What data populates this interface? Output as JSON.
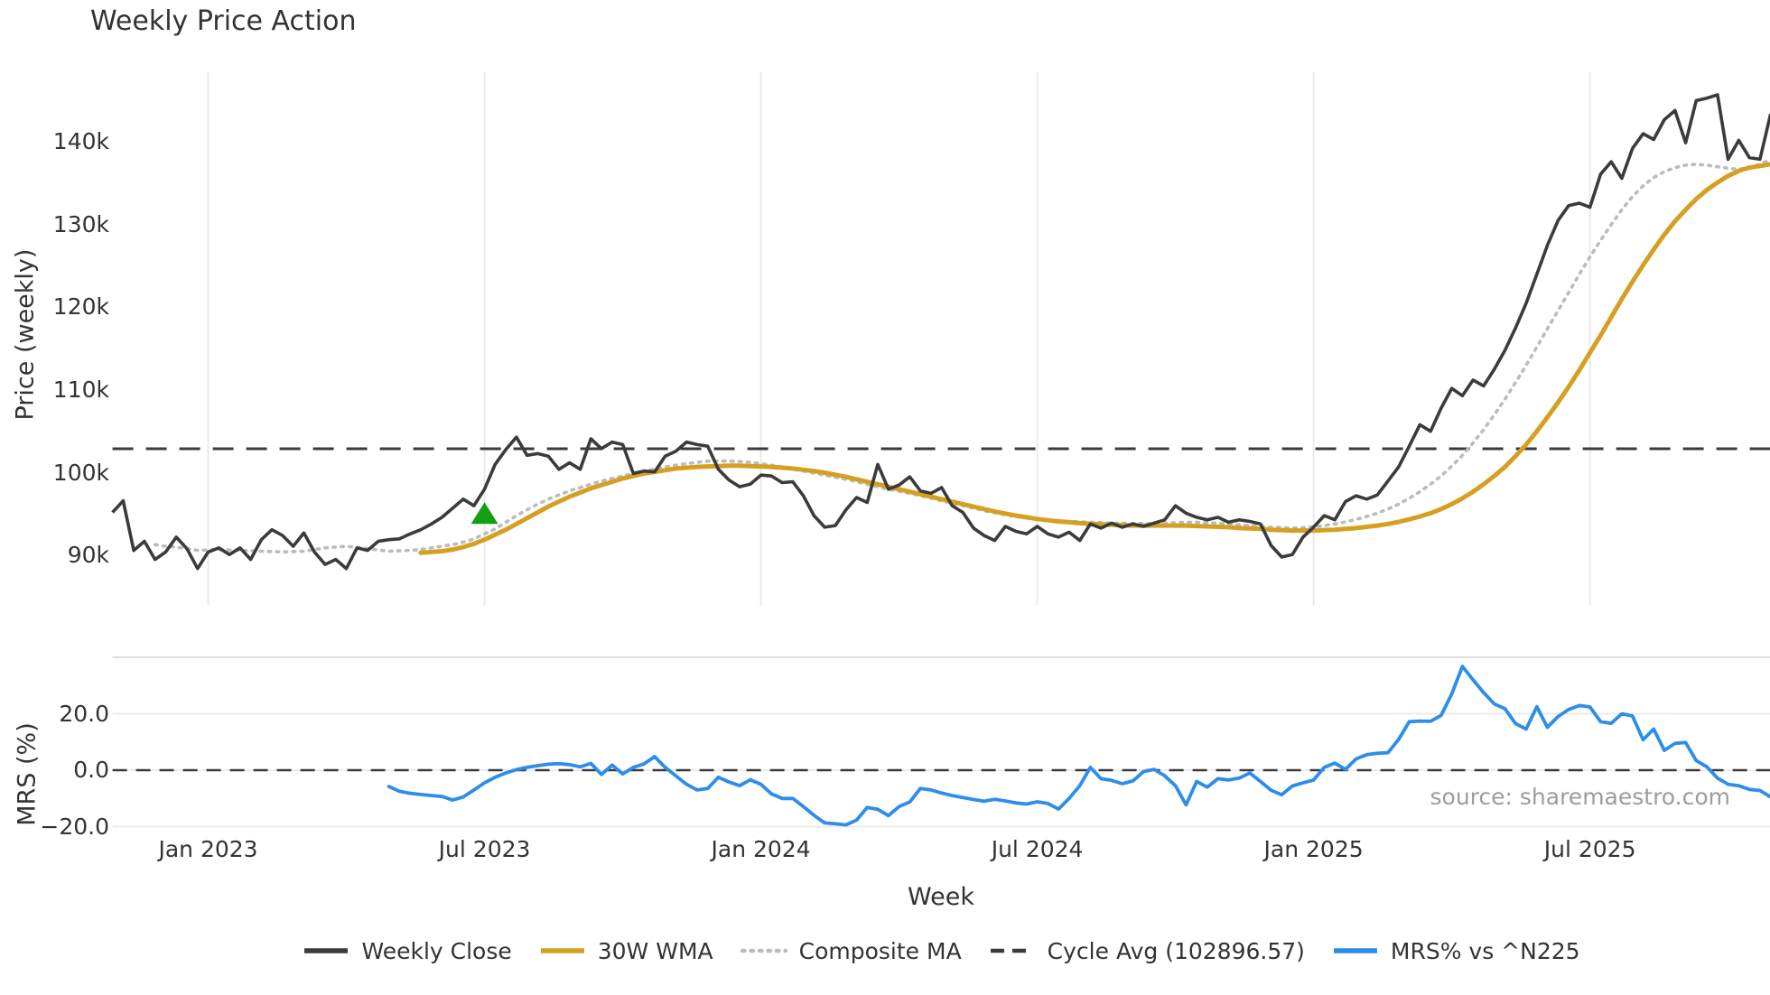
{
  "title": "Weekly Price Action",
  "source_note": "source: sharemaestro.com",
  "colors": {
    "weekly_close": "#3b3b3b",
    "wma": "#d5a021",
    "composite": "#bcbcbc",
    "cycle_avg": "#3a3a3a",
    "mrs": "#2d8de9",
    "signal_marker": "#13a113",
    "grid": "#e9e9ee",
    "panel_border": "#d8d8dc",
    "text": "#333333",
    "muted_text": "#9c9c9c"
  },
  "x_axis": {
    "label": "Week",
    "ticks": [
      {
        "label": "Jan 2023",
        "week": 9
      },
      {
        "label": "Jul 2023",
        "week": 35
      },
      {
        "label": "Jan 2024",
        "week": 61
      },
      {
        "label": "Jul 2024",
        "week": 87
      },
      {
        "label": "Jan 2025",
        "week": 113
      },
      {
        "label": "Jul 2025",
        "week": 139
      }
    ]
  },
  "legend": [
    {
      "label": "Weekly Close",
      "style": "solid",
      "color": "#3b3b3b"
    },
    {
      "label": "30W WMA",
      "style": "solid",
      "color": "#d5a021"
    },
    {
      "label": "Composite MA",
      "style": "dotted",
      "color": "#bcbcbc"
    },
    {
      "label": "Cycle Avg (102896.57)",
      "style": "dashed",
      "color": "#3a3a3a"
    },
    {
      "label": "MRS% vs ^N225",
      "style": "solid",
      "color": "#2d8de9"
    }
  ],
  "chart_data": [
    {
      "type": "line",
      "panel": "price",
      "ylabel": "Price (weekly)",
      "units": "thousands",
      "ylim": [
        86,
        148
      ],
      "grid": "vertical-only",
      "yticks": [
        {
          "label": "140k",
          "value": 140
        },
        {
          "label": "130k",
          "value": 130
        },
        {
          "label": "120k",
          "value": 120
        },
        {
          "label": "110k",
          "value": 110
        },
        {
          "label": "100k",
          "value": 100
        },
        {
          "label": "90k",
          "value": 90
        }
      ],
      "cycle_avg": {
        "label": "Cycle Avg (102896.57)",
        "value": 102.89657
      },
      "marker": {
        "shape": "triangle-up",
        "week": 35,
        "value": 95.0,
        "meaning": "signal marker"
      },
      "series": [
        {
          "name": "Weekly Close",
          "style": "solid",
          "start_week": 0,
          "values": [
            95.2,
            96.6,
            90.6,
            91.7,
            89.5,
            90.4,
            92.2,
            90.8,
            88.4,
            90.4,
            90.9,
            90.1,
            90.9,
            89.5,
            91.9,
            93.1,
            92.4,
            91.1,
            92.7,
            90.4,
            88.9,
            89.5,
            88.4,
            90.9,
            90.6,
            91.7,
            91.9,
            92.0,
            92.6,
            93.1,
            93.8,
            94.6,
            95.7,
            96.8,
            96.0,
            98.0,
            101.0,
            102.8,
            104.3,
            102.1,
            102.3,
            102.0,
            100.4,
            101.2,
            100.4,
            104.1,
            102.9,
            103.7,
            103.4,
            99.9,
            100.2,
            100.1,
            102.0,
            102.6,
            103.7,
            103.4,
            103.2,
            100.4,
            99.1,
            98.3,
            98.6,
            99.7,
            99.6,
            98.8,
            98.9,
            97.2,
            94.8,
            93.4,
            93.6,
            95.5,
            97.0,
            96.4,
            101.0,
            98.0,
            98.5,
            99.5,
            97.8,
            97.5,
            98.2,
            96.0,
            95.2,
            93.3,
            92.4,
            91.8,
            93.5,
            92.9,
            92.6,
            93.5,
            92.6,
            92.2,
            92.8,
            91.8,
            93.8,
            93.3,
            93.9,
            93.4,
            93.8,
            93.5,
            93.9,
            94.3,
            96.0,
            95.1,
            94.6,
            94.3,
            94.6,
            94.0,
            94.3,
            94.1,
            93.8,
            91.2,
            89.8,
            90.1,
            92.2,
            93.4,
            94.8,
            94.3,
            96.5,
            97.2,
            96.8,
            97.3,
            99.0,
            100.7,
            103.2,
            105.8,
            105.0,
            107.8,
            110.2,
            109.3,
            111.2,
            110.5,
            112.5,
            114.8,
            117.5,
            120.5,
            124.0,
            127.5,
            130.5,
            132.3,
            132.6,
            132.1,
            136.1,
            137.6,
            135.6,
            139.2,
            141.0,
            140.3,
            142.7,
            143.8,
            139.9,
            145.0,
            145.3,
            145.7,
            137.9,
            140.2,
            138.1,
            137.9,
            143.4
          ]
        },
        {
          "name": "30W WMA",
          "style": "solid",
          "start_week": 29,
          "values": [
            90.3,
            90.4,
            90.5,
            90.7,
            91.0,
            91.4,
            91.9,
            92.5,
            93.1,
            93.8,
            94.5,
            95.2,
            95.9,
            96.5,
            97.1,
            97.6,
            98.1,
            98.5,
            98.9,
            99.3,
            99.6,
            99.9,
            100.1,
            100.3,
            100.5,
            100.6,
            100.7,
            100.75,
            100.8,
            100.85,
            100.85,
            100.8,
            100.75,
            100.7,
            100.6,
            100.5,
            100.35,
            100.2,
            100.0,
            99.75,
            99.5,
            99.2,
            98.9,
            98.6,
            98.3,
            98.0,
            97.7,
            97.4,
            97.1,
            96.8,
            96.5,
            96.2,
            95.9,
            95.6,
            95.3,
            95.05,
            94.8,
            94.6,
            94.4,
            94.25,
            94.1,
            94.0,
            93.9,
            93.8,
            93.75,
            93.7,
            93.65,
            93.6,
            93.6,
            93.6,
            93.6,
            93.6,
            93.6,
            93.55,
            93.5,
            93.45,
            93.4,
            93.3,
            93.25,
            93.2,
            93.1,
            93.05,
            93.0,
            93.0,
            93.0,
            93.05,
            93.1,
            93.2,
            93.3,
            93.45,
            93.6,
            93.8,
            94.05,
            94.35,
            94.7,
            95.1,
            95.6,
            96.2,
            96.9,
            97.7,
            98.6,
            99.6,
            100.7,
            102.0,
            103.4,
            105.0,
            106.7,
            108.5,
            110.4,
            112.4,
            114.5,
            116.6,
            118.8,
            121.0,
            123.1,
            125.1,
            127.0,
            128.8,
            130.4,
            131.8,
            133.1,
            134.2,
            135.1,
            135.9,
            136.5,
            136.9,
            137.1,
            137.3
          ]
        },
        {
          "name": "Composite MA",
          "style": "dotted",
          "start_week": 4,
          "values": [
            91.3,
            91.1,
            91.0,
            90.8,
            90.6,
            90.65,
            90.7,
            90.65,
            90.6,
            90.55,
            90.5,
            90.45,
            90.4,
            90.45,
            90.5,
            90.7,
            90.9,
            91.0,
            91.1,
            90.95,
            90.8,
            90.65,
            90.5,
            90.55,
            90.6,
            90.7,
            90.9,
            91.1,
            91.3,
            91.6,
            92.0,
            92.6,
            93.2,
            94.0,
            94.8,
            95.5,
            96.2,
            96.8,
            97.3,
            97.8,
            98.2,
            98.6,
            99.0,
            99.3,
            99.6,
            99.9,
            100.2,
            100.45,
            100.7,
            100.9,
            101.1,
            101.25,
            101.4,
            101.4,
            101.4,
            101.35,
            101.25,
            101.1,
            100.9,
            100.7,
            100.45,
            100.2,
            99.95,
            99.7,
            99.45,
            99.2,
            98.9,
            98.6,
            98.3,
            98.0,
            97.75,
            97.5,
            97.2,
            96.9,
            96.6,
            96.3,
            96.0,
            95.7,
            95.4,
            95.15,
            94.9,
            94.7,
            94.55,
            94.4,
            94.3,
            94.2,
            94.1,
            94.05,
            94.0,
            93.95,
            93.9,
            93.9,
            93.85,
            93.85,
            93.85,
            93.9,
            93.95,
            94.0,
            94.0,
            93.95,
            93.9,
            93.8,
            93.7,
            93.6,
            93.5,
            93.4,
            93.35,
            93.3,
            93.35,
            93.45,
            93.6,
            93.8,
            94.05,
            94.35,
            94.7,
            95.1,
            95.6,
            96.2,
            96.9,
            97.7,
            98.6,
            99.6,
            100.8,
            102.1,
            103.6,
            105.2,
            107.0,
            108.9,
            110.9,
            113.0,
            115.2,
            117.4,
            119.6,
            121.8,
            124.0,
            126.1,
            128.1,
            130.0,
            131.8,
            133.4,
            134.7,
            135.7,
            136.4,
            136.9,
            137.2,
            137.3,
            137.2,
            137.0,
            136.8,
            136.7,
            136.9,
            137.3,
            137.9
          ]
        }
      ]
    },
    {
      "type": "line",
      "panel": "mrs",
      "ylabel": "MRS (%)",
      "xlabel": "Week",
      "ylim": [
        -28,
        40
      ],
      "grid": "horizontal-only",
      "zero_line": 0.0,
      "yticks": [
        {
          "label": "20.0",
          "value": 20
        },
        {
          "label": "0.0",
          "value": 0
        },
        {
          "label": "−20.0",
          "value": -20
        }
      ],
      "series": [
        {
          "name": "MRS% vs ^N225",
          "style": "solid",
          "start_week": 26,
          "values": [
            -5.8,
            -7.5,
            -8.2,
            -8.6,
            -9.0,
            -9.3,
            -10.6,
            -9.5,
            -7.0,
            -4.5,
            -2.5,
            -1.0,
            0.2,
            1.0,
            1.6,
            2.1,
            2.3,
            2.0,
            1.2,
            2.4,
            -1.5,
            1.8,
            -1.3,
            1.0,
            2.2,
            4.8,
            1.0,
            -2.0,
            -5.0,
            -7.0,
            -6.5,
            -2.5,
            -4.2,
            -5.5,
            -3.4,
            -5.0,
            -8.4,
            -10.0,
            -10.0,
            -12.9,
            -16.0,
            -18.7,
            -19.0,
            -19.4,
            -17.7,
            -13.2,
            -13.9,
            -16.1,
            -12.9,
            -11.3,
            -6.5,
            -7.0,
            -8.1,
            -9.0,
            -9.7,
            -10.4,
            -11.0,
            -10.3,
            -10.9,
            -11.6,
            -12.0,
            -11.2,
            -11.8,
            -13.8,
            -10.0,
            -5.5,
            1.0,
            -3.0,
            -3.6,
            -4.8,
            -3.8,
            -0.5,
            0.3,
            -2.0,
            -5.5,
            -12.3,
            -4.0,
            -6.0,
            -3.0,
            -3.5,
            -2.8,
            -1.0,
            -4.0,
            -7.1,
            -8.7,
            -5.6,
            -4.5,
            -3.5,
            1.0,
            2.5,
            0.3,
            4.0,
            5.5,
            6.0,
            6.2,
            10.9,
            17.2,
            17.4,
            17.3,
            19.4,
            27.0,
            36.8,
            32.0,
            27.5,
            23.5,
            21.8,
            16.5,
            14.6,
            22.5,
            15.2,
            19.0,
            21.5,
            22.9,
            22.4,
            17.2,
            16.6,
            20.0,
            19.2,
            10.8,
            14.6,
            7.0,
            9.5,
            9.8,
            3.4,
            1.2,
            -2.8,
            -5.0,
            -5.5,
            -6.8,
            -7.2,
            -9.5
          ]
        }
      ]
    }
  ]
}
